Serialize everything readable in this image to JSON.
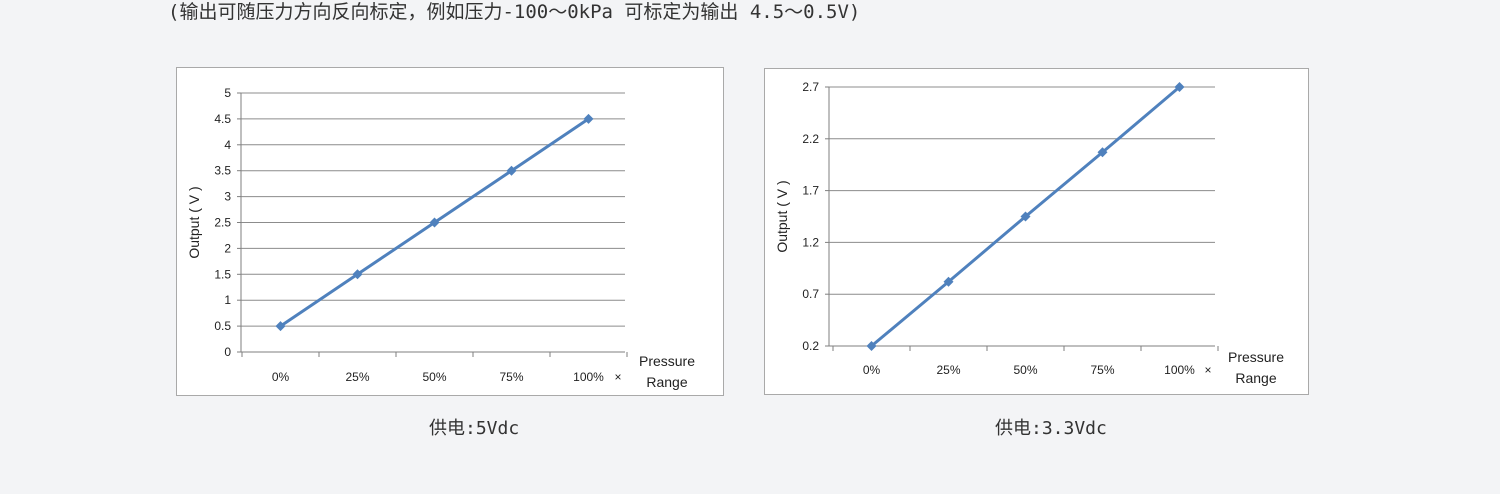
{
  "note": "(输出可随压力方向反向标定，例如压力-100～0kPa 可标定为输出 4.5～0.5V)",
  "colors": {
    "series": "#4f81bd",
    "grid": "#8c8c8c",
    "axis": "#7f7f7f"
  },
  "chart_data": [
    {
      "type": "line",
      "categories": [
        "0%",
        "25%",
        "50%",
        "75%",
        "100%"
      ],
      "series": [
        {
          "values": [
            0.5,
            1.5,
            2.5,
            3.5,
            4.5
          ]
        }
      ],
      "ylabel": "Output ( V )",
      "xlabel": "Pressure Range",
      "x_axis_marker": "×",
      "yticks": [
        "0",
        "0.5",
        "1",
        "1.5",
        "2",
        "2.5",
        "3",
        "3.5",
        "4",
        "4.5",
        "5"
      ],
      "ylim": [
        0,
        5
      ],
      "grid": true,
      "caption": "供电:5Vdc"
    },
    {
      "type": "line",
      "categories": [
        "0%",
        "25%",
        "50%",
        "75%",
        "100%"
      ],
      "series": [
        {
          "values": [
            0.2,
            0.82,
            1.45,
            2.07,
            2.7
          ]
        }
      ],
      "ylabel": "Output ( V )",
      "xlabel": "Pressure Range",
      "x_axis_marker": "×",
      "yticks": [
        "0.2",
        "0.7",
        "1.2",
        "1.7",
        "2.2",
        "2.7"
      ],
      "ylim": [
        0.2,
        2.7
      ],
      "grid": true,
      "caption": "供电:3.3Vdc"
    }
  ]
}
